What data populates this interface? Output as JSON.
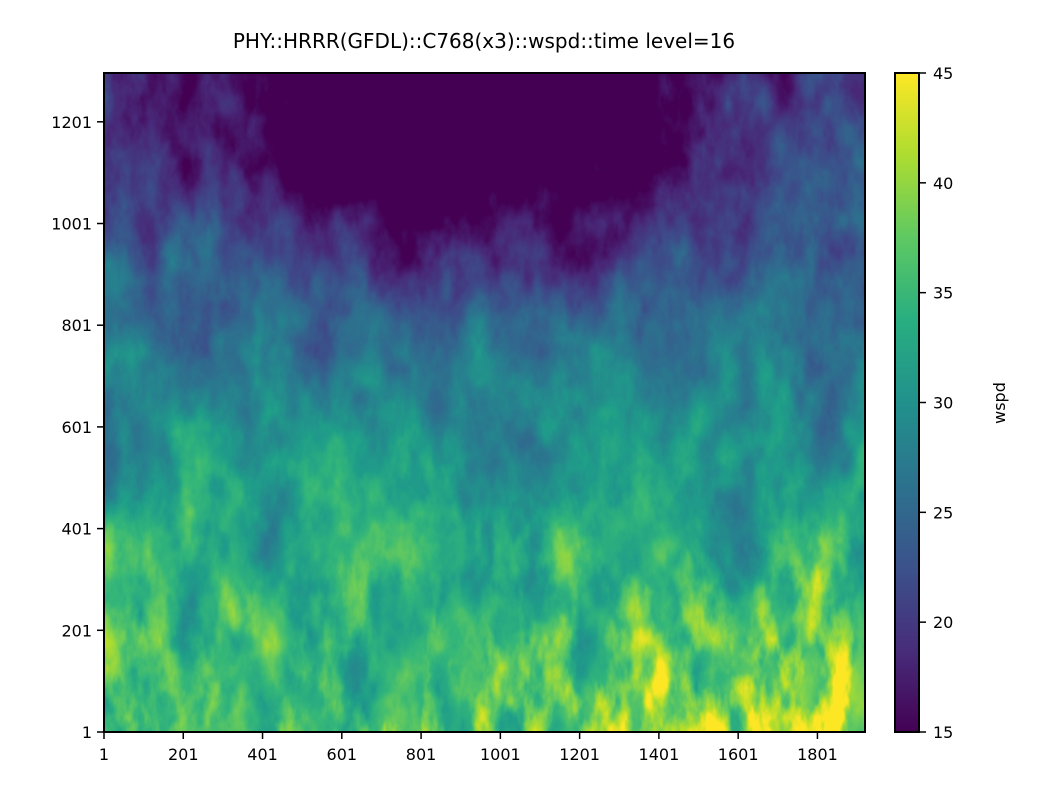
{
  "chart_data": {
    "type": "heatmap",
    "title": "PHY::HRRR(GFDL)::C768(x3)::wspd::time level=16",
    "xlabel": "",
    "ylabel": "",
    "xlim": [
      1,
      1921
    ],
    "ylim": [
      1,
      1297
    ],
    "x_ticks": [
      "1",
      "201",
      "401",
      "601",
      "801",
      "1001",
      "1201",
      "1401",
      "1601",
      "1801"
    ],
    "y_ticks": [
      "1",
      "201",
      "401",
      "601",
      "801",
      "1001",
      "1201"
    ],
    "colorbar": {
      "label": "wspd",
      "min": 15,
      "max": 45,
      "ticks": [
        "15",
        "20",
        "25",
        "30",
        "35",
        "40",
        "45"
      ],
      "colormap": "viridis"
    },
    "field_description": "Wind speed field: calm (15) region across the top center, increasing toward 30-35 mid-domain, with streaks of 40-45 concentrated near the bottom center and bottom right."
  }
}
